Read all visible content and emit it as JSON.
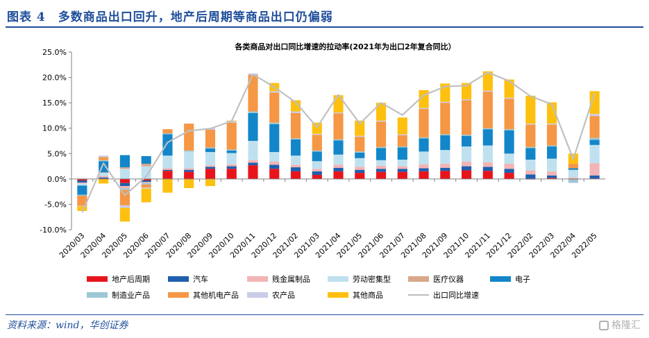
{
  "header": {
    "title": "图表 4　多数商品出口回升，地产后周期等商品出口仍偏弱"
  },
  "footer": {
    "source": "资料来源：wind，华创证券",
    "watermark": "格隆汇"
  },
  "chart_data": {
    "type": "bar",
    "stacked": true,
    "title": "各类商品对出口同比增速的拉动率(2021年为出口2年复合同比）",
    "xlabel": "",
    "ylabel": "",
    "ylim": [
      -10,
      25
    ],
    "yticks": [
      "-10.0%",
      "-5.0%",
      "0.0%",
      "5.0%",
      "10.0%",
      "15.0%",
      "20.0%",
      "25.0%"
    ],
    "grid": false,
    "legend_position": "bottom",
    "categories": [
      "2020/03",
      "2020/04",
      "2020/05",
      "2020/06",
      "2020/07",
      "2020/08",
      "2020/09",
      "2020/10",
      "2020/11",
      "2020/12",
      "2021/02",
      "2021/03",
      "2021/04",
      "2021/05",
      "2021/06",
      "2021/07",
      "2021/08",
      "2021/09",
      "2021/10",
      "2021/11",
      "2021/12",
      "2022/02",
      "2022/03",
      "2022/04",
      "2022/05"
    ],
    "series": [
      {
        "name": "地产后周期",
        "color": "#e8141b",
        "values": [
          -0.3,
          0.1,
          -0.8,
          -0.3,
          1.6,
          1.4,
          2.0,
          2.0,
          2.7,
          2.0,
          1.5,
          0.8,
          1.5,
          1.2,
          1.4,
          1.4,
          1.5,
          1.6,
          1.7,
          1.6,
          1.2,
          -0.1,
          0.2,
          -0.1,
          0.1
        ]
      },
      {
        "name": "汽车",
        "color": "#1f5fae",
        "values": [
          -0.4,
          0.2,
          -0.6,
          -0.3,
          0.2,
          0.4,
          0.4,
          0.5,
          0.5,
          0.8,
          0.8,
          0.7,
          0.7,
          0.6,
          0.6,
          0.6,
          0.6,
          0.6,
          0.8,
          0.8,
          0.8,
          0.9,
          0.5,
          0.0,
          0.6
        ]
      },
      {
        "name": "贱金属制品",
        "color": "#f2b4b4",
        "values": [
          -0.2,
          0.3,
          -0.5,
          -0.2,
          0.3,
          0.3,
          0.3,
          0.4,
          0.5,
          0.6,
          0.5,
          0.5,
          0.6,
          0.6,
          0.6,
          0.5,
          0.8,
          0.8,
          0.9,
          0.9,
          1.0,
          0.8,
          0.8,
          0.3,
          2.4
        ]
      },
      {
        "name": "劳动密集型",
        "color": "#bfe1ef",
        "values": [
          -0.4,
          0.6,
          2.0,
          2.5,
          2.5,
          3.3,
          2.6,
          2.2,
          3.8,
          1.9,
          1.8,
          1.5,
          2.0,
          1.7,
          1.1,
          1.3,
          2.5,
          2.7,
          3.0,
          3.3,
          2.0,
          2.1,
          2.5,
          1.5,
          3.6
        ]
      },
      {
        "name": "医疗仪器",
        "color": "#d9a789",
        "values": [
          0.0,
          0.1,
          0.3,
          0.5,
          0.0,
          0.0,
          0.0,
          0.0,
          0.0,
          0.0,
          0.0,
          0.0,
          0.0,
          0.0,
          0.0,
          0.0,
          0.0,
          0.0,
          0.0,
          0.0,
          0.0,
          0.0,
          0.0,
          0.0,
          0.0
        ]
      },
      {
        "name": "电子",
        "color": "#1386c9",
        "values": [
          -1.8,
          2.2,
          2.4,
          1.5,
          4.2,
          0.0,
          0.7,
          0.5,
          5.5,
          5.5,
          3.2,
          1.9,
          2.8,
          1.1,
          2.4,
          2.4,
          2.6,
          2.9,
          2.1,
          3.2,
          4.6,
          2.3,
          2.4,
          0.3,
          1.0
        ]
      },
      {
        "name": "制造业产品",
        "color": "#9cc7d6",
        "values": [
          -0.2,
          0.2,
          -0.3,
          -0.3,
          0.2,
          0.2,
          0.2,
          0.2,
          0.3,
          0.3,
          0.2,
          0.2,
          0.2,
          0.2,
          0.2,
          0.2,
          0.2,
          0.2,
          0.2,
          0.2,
          0.2,
          0.2,
          0.2,
          -0.6,
          0.4
        ]
      },
      {
        "name": "其他机电产品",
        "color": "#f59745",
        "values": [
          -2.0,
          0.6,
          -3.0,
          -0.6,
          0.8,
          5.3,
          3.5,
          5.3,
          7.2,
          5.9,
          5.0,
          3.1,
          5.1,
          2.9,
          5.0,
          2.2,
          5.6,
          6.2,
          6.8,
          7.2,
          6.0,
          4.4,
          4.1,
          0.9,
          4.3
        ]
      },
      {
        "name": "农产品",
        "color": "#c9cbe8",
        "values": [
          -0.1,
          0.3,
          -0.5,
          -0.2,
          0.0,
          0.0,
          0.3,
          0.3,
          0.3,
          0.3,
          0.3,
          0.2,
          0.2,
          0.2,
          0.2,
          0.2,
          0.2,
          0.2,
          0.2,
          0.2,
          0.2,
          0.2,
          0.2,
          -0.1,
          0.4
        ]
      },
      {
        "name": "其他商品",
        "color": "#fec00f",
        "values": [
          -0.9,
          -0.9,
          -2.7,
          -2.7,
          -2.7,
          -1.8,
          -1.4,
          0.1,
          0.0,
          1.6,
          2.2,
          2.2,
          3.4,
          3.0,
          3.5,
          3.3,
          3.5,
          3.6,
          3.2,
          3.8,
          3.6,
          5.5,
          4.2,
          2.0,
          4.5
        ]
      }
    ],
    "line": {
      "name": "出口同比增速",
      "color": "#c0c0c0",
      "values": [
        -6.6,
        3.1,
        -3.2,
        0.5,
        7.2,
        9.5,
        9.9,
        11.4,
        20.6,
        18.1,
        15.1,
        10.2,
        16.6,
        10.9,
        15.0,
        12.6,
        16.5,
        18.2,
        18.4,
        21.0,
        19.3,
        16.3,
        14.7,
        3.9,
        16.9
      ]
    }
  }
}
